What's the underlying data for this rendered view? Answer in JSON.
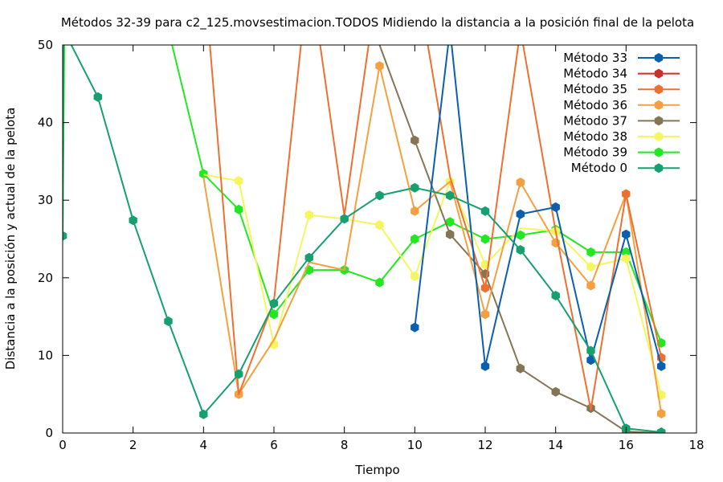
{
  "chart_data": {
    "type": "line",
    "title": "Métodos 32-39 para c2_125.movsestimacion.TODOS Midiendo la distancia a la posición final de la pelota",
    "xlabel": "Tiempo",
    "ylabel": "Distancia a la posición y actual de la pelota",
    "xlim": [
      0,
      18
    ],
    "ylim": [
      0,
      50
    ],
    "xticks": [
      0,
      2,
      4,
      6,
      8,
      10,
      12,
      14,
      16,
      18
    ],
    "yticks": [
      0,
      10,
      20,
      30,
      40,
      50
    ],
    "grid": false,
    "legend_position": "top-right",
    "series": [
      {
        "name": "Método 33",
        "color": "#0a5fae",
        "x": [
          10,
          11,
          12,
          13,
          14,
          15,
          16,
          17
        ],
        "y": [
          13.6,
          52,
          8.6,
          28.2,
          29.1,
          9.4,
          25.6,
          8.6
        ]
      },
      {
        "name": "Método 34",
        "color": "#c8322a",
        "x": [],
        "y": []
      },
      {
        "name": "Método 35",
        "color": "#ee7030",
        "x": [
          4,
          5,
          6,
          7,
          8,
          9,
          10,
          11,
          12,
          13,
          14,
          15,
          16,
          17
        ],
        "y": [
          60,
          5,
          17,
          60,
          28,
          60,
          60,
          33,
          18.7,
          52,
          26,
          3,
          30.8,
          9.7
        ]
      },
      {
        "name": "Método 36",
        "color": "#f5a040",
        "x": [
          4,
          5,
          6,
          7,
          8,
          9,
          10,
          11,
          12,
          13,
          14,
          15,
          16,
          17
        ],
        "y": [
          33,
          5,
          12,
          22,
          21,
          47.3,
          28.6,
          32.4,
          15.3,
          32.3,
          24.5,
          19,
          30.8,
          2.5
        ]
      },
      {
        "name": "Método 37",
        "color": "#857456",
        "x": [
          9,
          10,
          11,
          12,
          13,
          14,
          15,
          16,
          17
        ],
        "y": [
          50,
          37.7,
          25.6,
          20.5,
          8.3,
          5.3,
          3.2,
          0.2,
          0
        ]
      },
      {
        "name": "Método 38",
        "color": "#f5f560",
        "x": [
          4,
          5,
          6,
          7,
          8,
          9,
          10,
          11,
          12,
          13,
          14,
          15,
          16,
          17
        ],
        "y": [
          33.3,
          32.5,
          11.4,
          28.1,
          27.6,
          26.8,
          20.2,
          32.4,
          21.7,
          26.4,
          26,
          21.4,
          22.5,
          4.9
        ]
      },
      {
        "name": "Método 39",
        "color": "#22e822",
        "x": [
          0,
          0.05,
          3,
          4,
          5,
          6,
          7,
          8,
          9,
          10,
          11,
          12,
          13,
          14,
          15,
          16,
          17
        ],
        "y": [
          25.4,
          52,
          52,
          33.4,
          28.8,
          15.3,
          21,
          21,
          19.4,
          25,
          27.2,
          25,
          25.5,
          26.2,
          23.3,
          23.3,
          11.6
        ]
      },
      {
        "name": "Método 0",
        "color": "#16a070",
        "x": [
          0,
          0.02,
          1,
          2,
          3,
          4,
          5,
          6,
          7,
          8,
          9,
          10,
          11,
          12,
          13,
          14,
          15,
          16,
          17
        ],
        "y": [
          25.4,
          52,
          43.3,
          27.4,
          14.4,
          2.4,
          7.6,
          16.7,
          22.6,
          27.6,
          30.6,
          31.6,
          30.6,
          28.6,
          23.6,
          17.7,
          10.6,
          0.6,
          0.1
        ]
      }
    ],
    "markers": [
      {
        "series": 0,
        "x": [
          10,
          12,
          13,
          14,
          15,
          16,
          17
        ],
        "y": [
          13.6,
          8.6,
          28.2,
          29.1,
          9.4,
          25.6,
          8.6
        ]
      },
      {
        "series": 1,
        "x": [],
        "y": []
      },
      {
        "series": 2,
        "x": [
          12,
          16,
          17
        ],
        "y": [
          18.7,
          30.8,
          9.7
        ]
      },
      {
        "series": 3,
        "x": [
          5,
          9,
          10,
          12,
          13,
          14,
          15,
          16,
          17
        ],
        "y": [
          5,
          47.3,
          28.6,
          15.3,
          32.3,
          24.5,
          19,
          30.8,
          2.5
        ]
      },
      {
        "series": 4,
        "x": [
          10,
          11,
          12,
          13,
          14,
          15,
          16,
          17
        ],
        "y": [
          37.7,
          25.6,
          20.5,
          8.3,
          5.3,
          3.2,
          0.2,
          0
        ]
      },
      {
        "series": 5,
        "x": [
          5,
          6,
          7,
          9,
          10,
          11,
          12,
          14,
          15,
          16,
          17
        ],
        "y": [
          32.5,
          11.4,
          28.1,
          26.8,
          20.2,
          32.4,
          21.7,
          26,
          21.4,
          22.5,
          4.9
        ]
      },
      {
        "series": 6,
        "x": [
          0,
          4,
          5,
          6,
          7,
          8,
          9,
          10,
          11,
          12,
          13,
          14,
          15,
          16,
          17
        ],
        "y": [
          25.4,
          33.4,
          28.8,
          15.3,
          21,
          21,
          19.4,
          25,
          27.2,
          25,
          25.5,
          26.2,
          23.3,
          23.3,
          11.6
        ]
      },
      {
        "series": 7,
        "x": [
          0,
          1,
          2,
          3,
          4,
          5,
          6,
          7,
          8,
          9,
          10,
          11,
          12,
          13,
          14,
          15,
          16,
          17
        ],
        "y": [
          25.4,
          43.3,
          27.4,
          14.4,
          2.4,
          7.6,
          16.7,
          22.6,
          27.6,
          30.6,
          31.6,
          30.6,
          28.6,
          23.6,
          17.7,
          10.6,
          0.6,
          0.1
        ]
      }
    ]
  }
}
